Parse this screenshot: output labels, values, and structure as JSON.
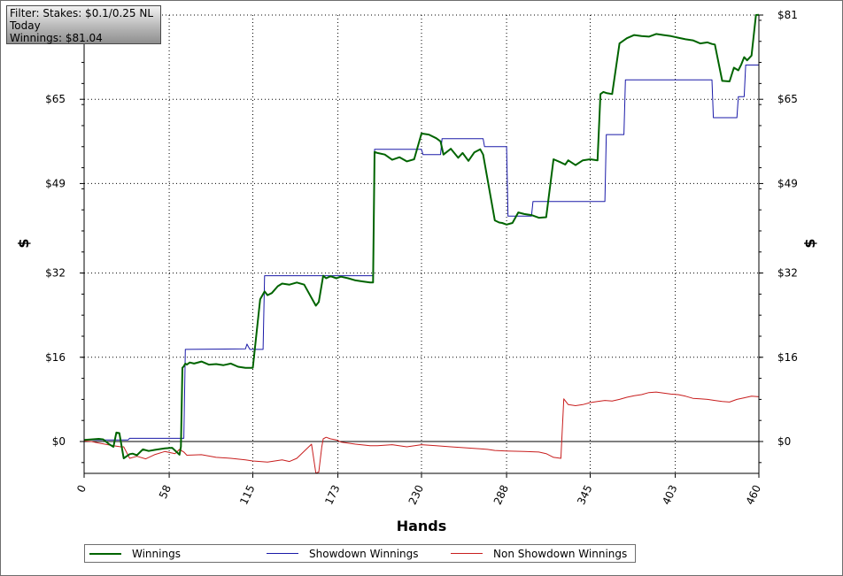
{
  "filter_box": {
    "line1": "Filter: Stakes: $0.1/0.25 NL",
    "line2": "Today",
    "line3": "Winnings: $81.04"
  },
  "colors": {
    "winnings": "#006400",
    "showdown": "#1a1aa8",
    "non_showdown": "#c81e1e",
    "grid": "#000000",
    "zero_line": "#000000"
  },
  "chart_data": {
    "type": "line",
    "xlabel": "Hands",
    "ylabel_left": "$",
    "ylabel_right": "$",
    "xlim": [
      0,
      460
    ],
    "ylim": [
      -6,
      81
    ],
    "x_ticks": [
      "0",
      "58",
      "115",
      "173",
      "230",
      "288",
      "345",
      "403",
      "460"
    ],
    "y_ticks": [
      "$0",
      "$16",
      "$32",
      "$49",
      "$65",
      "$81"
    ],
    "y_tick_values": [
      0,
      16,
      32,
      49,
      65,
      81
    ],
    "grid": true,
    "legend_position": "bottom",
    "series": [
      {
        "name": "Winnings",
        "key": "winnings",
        "x": [
          0,
          5,
          10,
          13,
          17,
          20,
          22,
          24,
          27,
          31,
          33,
          36,
          40,
          44,
          48,
          55,
          60,
          65,
          66,
          67,
          68,
          69,
          70,
          72,
          75,
          80,
          85,
          90,
          95,
          100,
          105,
          110,
          115,
          120,
          123,
          125,
          128,
          132,
          135,
          140,
          145,
          150,
          158,
          160,
          163,
          165,
          168,
          172,
          175,
          180,
          185,
          190,
          195,
          197,
          198,
          200,
          205,
          210,
          215,
          220,
          225,
          230,
          235,
          240,
          243,
          245,
          250,
          255,
          258,
          262,
          266,
          270,
          272,
          280,
          283,
          285,
          288,
          292,
          296,
          300,
          305,
          310,
          315,
          320,
          325,
          328,
          330,
          335,
          340,
          345,
          350,
          352,
          354,
          356,
          360,
          365,
          370,
          375,
          380,
          385,
          390,
          395,
          400,
          405,
          410,
          415,
          420,
          425,
          428,
          430,
          435,
          440,
          443,
          446,
          448,
          450,
          452,
          455,
          458,
          460
        ],
        "y": [
          0.3,
          0.4,
          0.5,
          0.4,
          -0.5,
          -1.0,
          1.7,
          1.6,
          -3.2,
          -2.4,
          -2.3,
          -2.6,
          -1.5,
          -1.8,
          -1.6,
          -1.3,
          -1.2,
          -2.5,
          -1.0,
          14.0,
          14.3,
          14.8,
          14.6,
          15.0,
          14.8,
          15.2,
          14.6,
          14.7,
          14.5,
          14.8,
          14.2,
          14.0,
          14.0,
          27.0,
          28.5,
          27.8,
          28.2,
          29.5,
          30.0,
          29.8,
          30.2,
          29.8,
          25.8,
          26.5,
          31.5,
          31.0,
          31.4,
          31.0,
          31.3,
          31.0,
          30.6,
          30.4,
          30.2,
          30.2,
          55.0,
          54.8,
          54.5,
          53.5,
          54.0,
          53.2,
          53.6,
          58.5,
          58.3,
          57.6,
          57.0,
          54.5,
          55.6,
          53.9,
          54.8,
          53.3,
          54.9,
          55.5,
          54.5,
          42.0,
          41.6,
          41.5,
          41.2,
          41.5,
          43.5,
          43.2,
          43.0,
          42.5,
          42.6,
          53.6,
          53.0,
          52.6,
          53.4,
          52.5,
          53.4,
          53.6,
          53.4,
          66.0,
          66.4,
          66.2,
          66.0,
          75.6,
          76.6,
          77.2,
          77.0,
          76.9,
          77.4,
          77.2,
          77.0,
          76.7,
          76.4,
          76.2,
          75.6,
          75.8,
          75.5,
          75.4,
          68.5,
          68.4,
          71.0,
          70.5,
          71.6,
          73.0,
          72.4,
          73.3,
          81.0,
          81.04
        ]
      },
      {
        "name": "Showdown Winnings",
        "key": "showdown",
        "x": [
          0,
          30,
          31,
          68,
          69,
          110,
          111,
          112,
          113,
          122,
          123,
          197,
          198,
          230,
          231,
          243,
          244,
          272,
          273,
          288,
          289,
          305,
          306,
          355,
          356,
          368,
          369,
          428,
          429,
          445,
          446,
          450,
          451,
          460
        ],
        "y": [
          0.3,
          0.3,
          0.6,
          0.6,
          17.5,
          17.6,
          18.5,
          18.0,
          17.5,
          17.5,
          31.5,
          31.5,
          55.5,
          55.5,
          54.5,
          54.5,
          57.5,
          57.5,
          56.0,
          56.0,
          42.8,
          42.8,
          45.6,
          45.6,
          58.3,
          58.3,
          68.7,
          68.7,
          61.5,
          61.5,
          65.5,
          65.5,
          71.5,
          71.5
        ]
      },
      {
        "name": "Non Showdown Winnings",
        "key": "non_showdown",
        "x": [
          0,
          5,
          10,
          20,
          25,
          27,
          31,
          36,
          42,
          48,
          55,
          62,
          65,
          68,
          70,
          80,
          90,
          100,
          110,
          115,
          125,
          135,
          140,
          145,
          155,
          158,
          160,
          162,
          163,
          165,
          168,
          172,
          175,
          185,
          195,
          200,
          210,
          220,
          230,
          240,
          250,
          260,
          270,
          275,
          280,
          288,
          300,
          310,
          315,
          320,
          325,
          327,
          330,
          335,
          340,
          345,
          350,
          355,
          360,
          365,
          370,
          375,
          380,
          385,
          390,
          395,
          400,
          405,
          410,
          415,
          420,
          425,
          430,
          435,
          440,
          445,
          450,
          455,
          460
        ],
        "y": [
          0.1,
          0.0,
          -0.3,
          -0.8,
          -1.0,
          -1.0,
          -3.2,
          -2.8,
          -3.3,
          -2.5,
          -1.9,
          -2.3,
          -1.5,
          -2.0,
          -2.6,
          -2.5,
          -3.0,
          -3.2,
          -3.5,
          -3.7,
          -3.9,
          -3.5,
          -3.8,
          -3.2,
          -0.5,
          -6.0,
          -5.8,
          -1.0,
          0.5,
          0.8,
          0.5,
          0.3,
          -0.1,
          -0.5,
          -0.8,
          -0.8,
          -0.6,
          -1.0,
          -0.6,
          -0.8,
          -1.0,
          -1.2,
          -1.4,
          -1.5,
          -1.7,
          -1.8,
          -1.9,
          -2.0,
          -2.3,
          -3.0,
          -3.2,
          8.1,
          7.0,
          6.8,
          7.0,
          7.4,
          7.6,
          7.8,
          7.7,
          8.0,
          8.4,
          8.7,
          8.9,
          9.3,
          9.4,
          9.2,
          9.0,
          8.9,
          8.6,
          8.2,
          8.1,
          8.0,
          7.8,
          7.6,
          7.5,
          8.0,
          8.3,
          8.6,
          8.5
        ]
      }
    ]
  }
}
